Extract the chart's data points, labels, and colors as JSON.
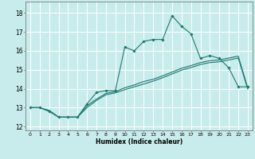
{
  "title": "",
  "xlabel": "Humidex (Indice chaleur)",
  "background_color": "#c8ecec",
  "grid_color": "#ffffff",
  "line_color": "#1a7a6e",
  "xlim": [
    -0.5,
    23.5
  ],
  "ylim": [
    11.8,
    18.6
  ],
  "xticks": [
    0,
    1,
    2,
    3,
    4,
    5,
    6,
    7,
    8,
    9,
    10,
    11,
    12,
    13,
    14,
    15,
    16,
    17,
    18,
    19,
    20,
    21,
    22,
    23
  ],
  "yticks": [
    12,
    13,
    14,
    15,
    16,
    17,
    18
  ],
  "line1_x": [
    0,
    1,
    2,
    3,
    4,
    5,
    6,
    7,
    8,
    9,
    10,
    11,
    12,
    13,
    14,
    15,
    16,
    17,
    18,
    19,
    20,
    21,
    22,
    23
  ],
  "line1_y": [
    13.0,
    13.0,
    12.8,
    12.5,
    12.5,
    12.5,
    13.2,
    13.8,
    13.9,
    13.9,
    16.2,
    16.0,
    16.5,
    16.6,
    16.6,
    17.85,
    17.3,
    16.9,
    15.6,
    15.75,
    15.6,
    15.1,
    14.1,
    14.1
  ],
  "line2_x": [
    0,
    1,
    2,
    3,
    4,
    5,
    6,
    7,
    8,
    9,
    10,
    11,
    12,
    13,
    14,
    15,
    16,
    17,
    18,
    19,
    20,
    21,
    22,
    23
  ],
  "line2_y": [
    13.0,
    13.0,
    12.85,
    12.5,
    12.5,
    12.5,
    13.1,
    13.45,
    13.75,
    13.85,
    14.05,
    14.2,
    14.38,
    14.5,
    14.68,
    14.88,
    15.08,
    15.22,
    15.38,
    15.48,
    15.52,
    15.62,
    15.72,
    14.05
  ],
  "line3_x": [
    0,
    1,
    2,
    3,
    4,
    5,
    6,
    7,
    8,
    9,
    10,
    11,
    12,
    13,
    14,
    15,
    16,
    17,
    18,
    19,
    20,
    21,
    22,
    23
  ],
  "line3_y": [
    13.0,
    13.0,
    12.85,
    12.5,
    12.5,
    12.5,
    13.0,
    13.38,
    13.68,
    13.78,
    13.95,
    14.1,
    14.25,
    14.4,
    14.58,
    14.78,
    14.98,
    15.12,
    15.28,
    15.38,
    15.42,
    15.52,
    15.62,
    13.98
  ]
}
